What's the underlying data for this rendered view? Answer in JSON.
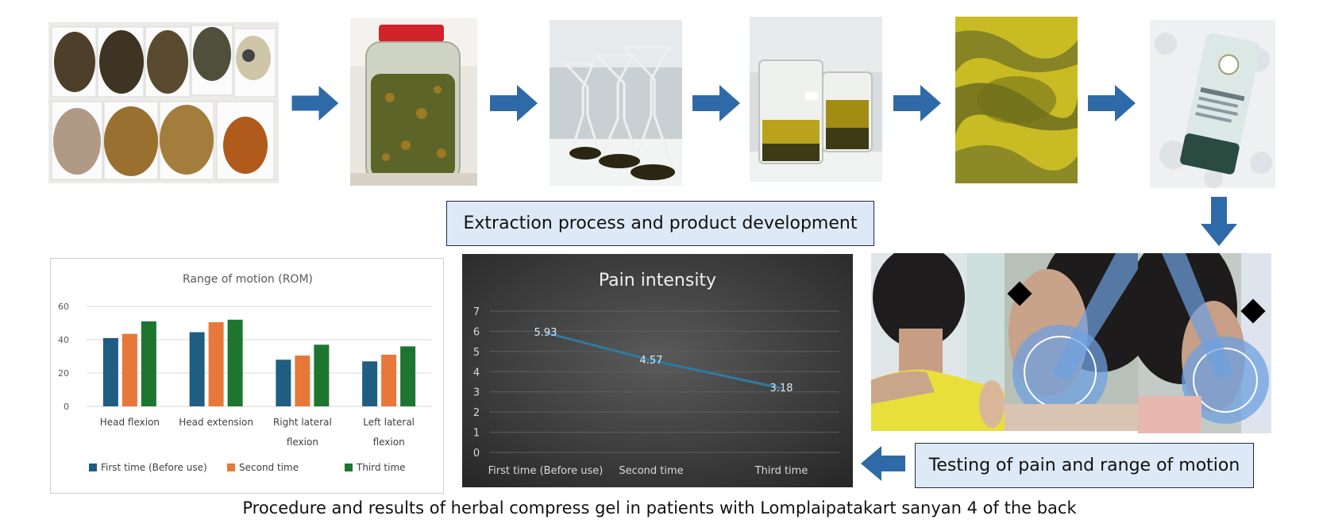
{
  "top_label": "Extraction process and product development",
  "bottom_label": "Testing of pain and range of motion",
  "caption": "Procedure and results of herbal compress gel in patients with Lomplaipatakart sanyan 4 of the back",
  "photos": [
    {
      "name": "dried-herbs-photo",
      "colors": {
        "bg": "#e9e9e9",
        "fg": "#6b5a3a"
      }
    },
    {
      "name": "herb-soak-jar-photo",
      "colors": {
        "bg": "#eeeae2",
        "fg": "#5c6a2a"
      }
    },
    {
      "name": "filtering-flasks-photo",
      "colors": {
        "bg": "#cfd6da",
        "fg": "#2c2a12"
      }
    },
    {
      "name": "extract-beakers-photo",
      "colors": {
        "bg": "#d8dde0",
        "fg": "#9c8a1a"
      }
    },
    {
      "name": "herbal-gel-photo",
      "colors": {
        "bg": "#8a8a22",
        "fg": "#6d6d18"
      }
    },
    {
      "name": "gel-product-bottle-photo",
      "colors": {
        "bg": "#eef0f2",
        "fg": "#4d6a5e"
      }
    },
    {
      "name": "patient-neck-photo",
      "colors": {
        "bg": "#d7c3a8",
        "fg": "#e4d72b"
      }
    },
    {
      "name": "goniometer-measure-photo-1",
      "colors": {
        "bg": "#c9b6a4",
        "fg": "#3a6fcf"
      }
    },
    {
      "name": "goniometer-measure-photo-2",
      "colors": {
        "bg": "#c6b8ad",
        "fg": "#3a6fcf"
      }
    }
  ],
  "arrow_color": "#2f6aa8",
  "chart_data": [
    {
      "type": "bar",
      "title": "Range of motion (ROM)",
      "categories": [
        "Head flexion",
        "Head extension",
        "Right lateral flexion",
        "Left lateral flexion"
      ],
      "category_lines": [
        [
          "Head flexion"
        ],
        [
          "Head extension"
        ],
        [
          "Right lateral",
          "flexion"
        ],
        [
          "Left lateral",
          "flexion"
        ]
      ],
      "series": [
        {
          "name": "First time (Before use)",
          "values": [
            41,
            44.5,
            28,
            27
          ],
          "color": "#1f5e82"
        },
        {
          "name": "Second time",
          "values": [
            43.5,
            50.5,
            30.5,
            31
          ],
          "color": "#e8783a"
        },
        {
          "name": "Third time",
          "values": [
            51,
            52,
            37,
            36
          ],
          "color": "#1e7530"
        }
      ],
      "ylim": [
        0,
        60
      ],
      "yticks": [
        0,
        20,
        40,
        60
      ],
      "grid": true,
      "legend": "bottom"
    },
    {
      "type": "line",
      "title": "Pain intensity",
      "categories": [
        "First time (Before use)",
        "Second time",
        "Third time"
      ],
      "series": [
        {
          "values": [
            5.93,
            4.57,
            3.18
          ],
          "labels": [
            "5.93",
            "4.57",
            "3.18"
          ],
          "color": "#2e7aa0"
        }
      ],
      "ylim": [
        0,
        7
      ],
      "yticks": [
        0,
        1,
        2,
        3,
        4,
        5,
        6,
        7
      ],
      "grid": true,
      "background": "#3a3a3a"
    }
  ]
}
